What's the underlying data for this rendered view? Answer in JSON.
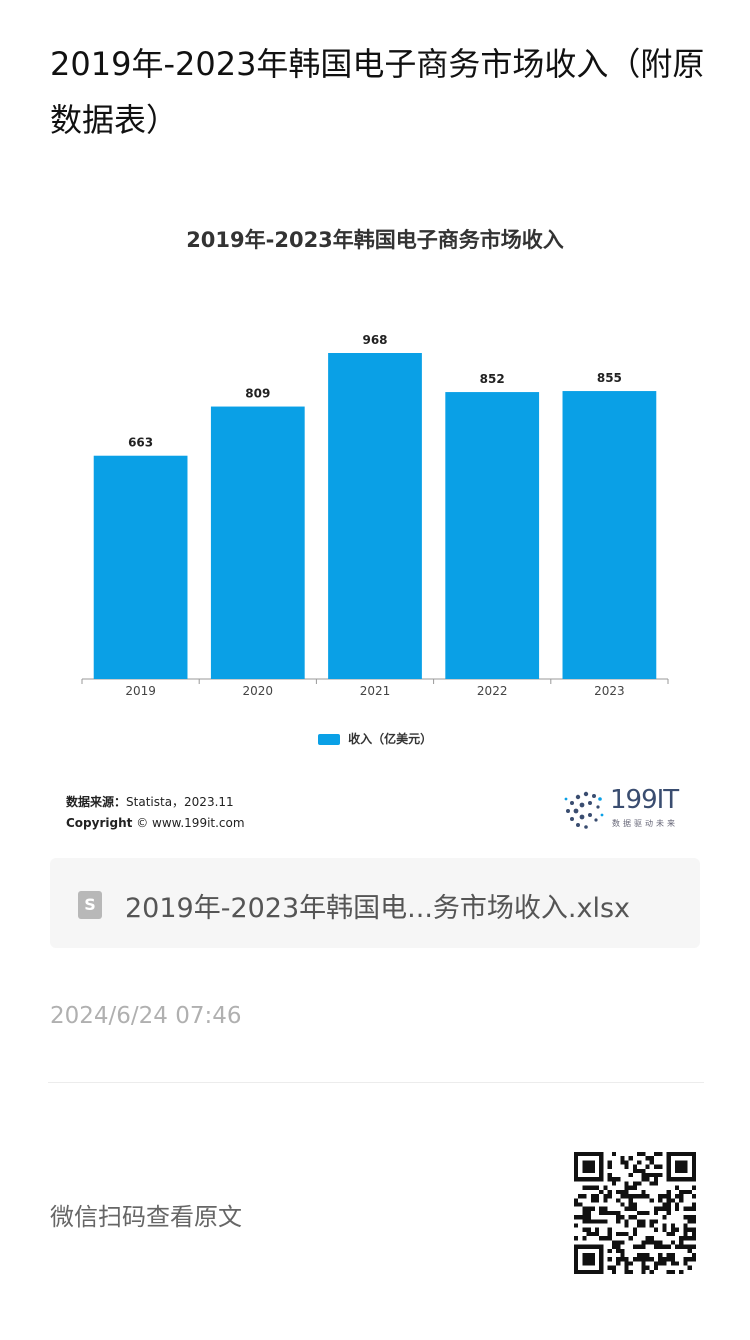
{
  "article": {
    "title": "2019年-2023年韩国电子商务市场收入（附原数据表）",
    "file_name": "2019年-2023年韩国电...务市场收入.xlsx",
    "file_icon_letter": "S",
    "timestamp": "2024/6/24 07:46",
    "qr_caption": "微信扫码查看原文"
  },
  "chart_data": {
    "type": "bar",
    "title": "2019年-2023年韩国电子商务市场收入",
    "categories": [
      "2019",
      "2020",
      "2021",
      "2022",
      "2023"
    ],
    "series": [
      {
        "name": "收入（亿美元）",
        "values": [
          663,
          809,
          968,
          852,
          855
        ],
        "color": "#0aa0e6"
      }
    ],
    "ylim": [
      0,
      968
    ],
    "grid": false,
    "legend_position": "bottom"
  },
  "source": {
    "label": "数据来源：",
    "text": "Statista，2023.11",
    "copyright_label": "Copyright",
    "copyright_text": "© www.199it.com"
  },
  "brand": {
    "name": "199IT",
    "tagline": "数据驱动未来"
  },
  "colors": {
    "bar": "#0aa0e6",
    "brand": "#3a4d70"
  }
}
